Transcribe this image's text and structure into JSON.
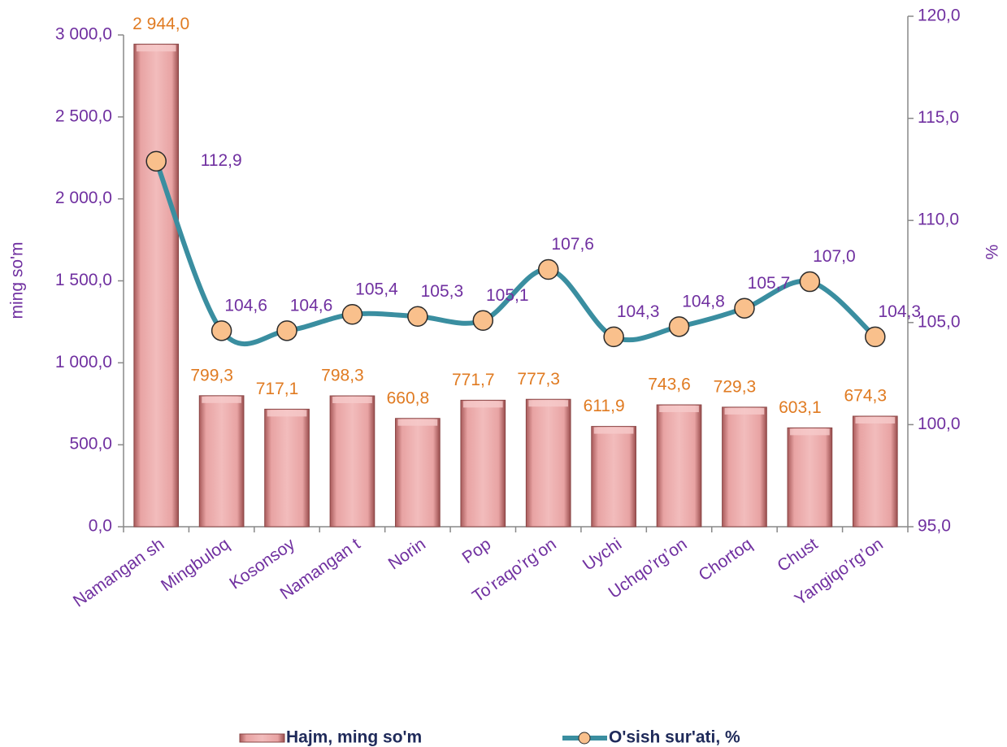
{
  "chart_data": {
    "type": "bar",
    "y_label": "ming so'm",
    "y2_label": "%",
    "categories": [
      "Namangan sh",
      "Mingbuloq",
      "Kosonsoy",
      "Namangan t",
      "Norin",
      "Pop",
      "To’raqo’rg’on",
      "Uychi",
      "Uchqo’rg’on",
      "Chortoq",
      "Chust",
      "Yangiqo’rg’on"
    ],
    "series": [
      {
        "name": "Hajm, ming so'm",
        "type": "bar",
        "color": "#e8a3a3",
        "values": [
          2944.0,
          799.3,
          717.1,
          798.3,
          660.8,
          771.7,
          777.3,
          611.9,
          743.6,
          729.3,
          603.1,
          674.3
        ],
        "value_labels": [
          "2 944,0",
          "799,3",
          "717,1",
          "798,3",
          "660,8",
          "771,7",
          "777,3",
          "611,9",
          "743,6",
          "729,3",
          "603,1",
          "674,3"
        ],
        "label_color": "#e07b22"
      },
      {
        "name": "O'sish sur'ati, %",
        "type": "line",
        "axis": "y2",
        "color": "#3a8ea0",
        "marker_color": "#f9c08c",
        "values": [
          112.9,
          104.6,
          104.6,
          105.4,
          105.3,
          105.1,
          107.6,
          104.3,
          104.8,
          105.7,
          107.0,
          104.3
        ],
        "value_labels": [
          "112,9",
          "104,6",
          "104,6",
          "105,4",
          "105,3",
          "105,1",
          "107,6",
          "104,3",
          "104,8",
          "105,7",
          "107,0",
          "104,3"
        ],
        "label_color": "#7030a0"
      }
    ],
    "ylim": [
      0,
      3000
    ],
    "yticks": [
      {
        "value": 0,
        "label": "0,0"
      },
      {
        "value": 500,
        "label": "500,0"
      },
      {
        "value": 1000,
        "label": "1 000,0"
      },
      {
        "value": 1500,
        "label": "1 500,0"
      },
      {
        "value": 2000,
        "label": "2 000,0"
      },
      {
        "value": 2500,
        "label": "2 500,0"
      },
      {
        "value": 3000,
        "label": "3 000,0"
      }
    ],
    "y2lim": [
      95,
      120
    ],
    "y2ticks": [
      {
        "value": 95,
        "label": "95,0"
      },
      {
        "value": 100,
        "label": "100,0"
      },
      {
        "value": 105,
        "label": "105,0"
      },
      {
        "value": 110,
        "label": "110,0"
      },
      {
        "value": 115,
        "label": "115,0"
      },
      {
        "value": 120,
        "label": "120,0"
      }
    ],
    "grid": false,
    "legend": "bottom"
  }
}
